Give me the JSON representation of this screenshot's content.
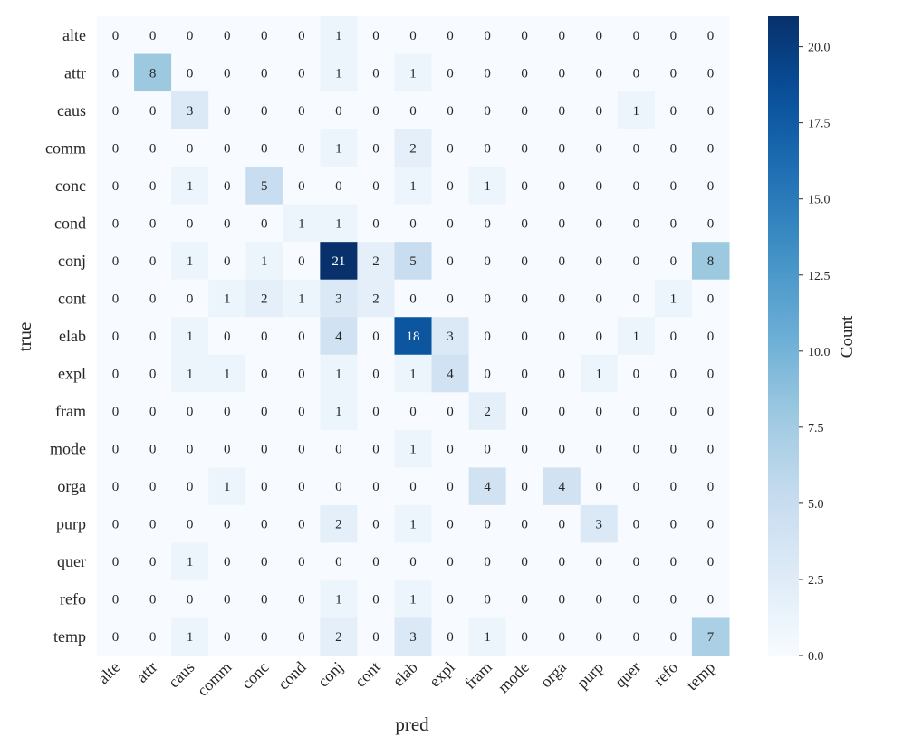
{
  "chart_data": {
    "type": "heatmap",
    "title": "",
    "xlabel": "pred",
    "ylabel": "true",
    "x_categories": [
      "alte",
      "attr",
      "caus",
      "comm",
      "conc",
      "cond",
      "conj",
      "cont",
      "elab",
      "expl",
      "fram",
      "mode",
      "orga",
      "purp",
      "quer",
      "refo",
      "temp"
    ],
    "y_categories": [
      "alte",
      "attr",
      "caus",
      "comm",
      "conc",
      "cond",
      "conj",
      "cont",
      "elab",
      "expl",
      "fram",
      "mode",
      "orga",
      "purp",
      "quer",
      "refo",
      "temp"
    ],
    "values": [
      [
        0,
        0,
        0,
        0,
        0,
        0,
        1,
        0,
        0,
        0,
        0,
        0,
        0,
        0,
        0,
        0,
        0
      ],
      [
        0,
        8,
        0,
        0,
        0,
        0,
        1,
        0,
        1,
        0,
        0,
        0,
        0,
        0,
        0,
        0,
        0
      ],
      [
        0,
        0,
        3,
        0,
        0,
        0,
        0,
        0,
        0,
        0,
        0,
        0,
        0,
        0,
        1,
        0,
        0
      ],
      [
        0,
        0,
        0,
        0,
        0,
        0,
        1,
        0,
        2,
        0,
        0,
        0,
        0,
        0,
        0,
        0,
        0
      ],
      [
        0,
        0,
        1,
        0,
        5,
        0,
        0,
        0,
        1,
        0,
        1,
        0,
        0,
        0,
        0,
        0,
        0
      ],
      [
        0,
        0,
        0,
        0,
        0,
        1,
        1,
        0,
        0,
        0,
        0,
        0,
        0,
        0,
        0,
        0,
        0
      ],
      [
        0,
        0,
        1,
        0,
        1,
        0,
        21,
        2,
        5,
        0,
        0,
        0,
        0,
        0,
        0,
        0,
        8
      ],
      [
        0,
        0,
        0,
        1,
        2,
        1,
        3,
        2,
        0,
        0,
        0,
        0,
        0,
        0,
        0,
        1,
        0
      ],
      [
        0,
        0,
        1,
        0,
        0,
        0,
        4,
        0,
        18,
        3,
        0,
        0,
        0,
        0,
        1,
        0,
        0
      ],
      [
        0,
        0,
        1,
        1,
        0,
        0,
        1,
        0,
        1,
        4,
        0,
        0,
        0,
        1,
        0,
        0,
        0
      ],
      [
        0,
        0,
        0,
        0,
        0,
        0,
        1,
        0,
        0,
        0,
        2,
        0,
        0,
        0,
        0,
        0,
        0
      ],
      [
        0,
        0,
        0,
        0,
        0,
        0,
        0,
        0,
        1,
        0,
        0,
        0,
        0,
        0,
        0,
        0,
        0
      ],
      [
        0,
        0,
        0,
        1,
        0,
        0,
        0,
        0,
        0,
        0,
        4,
        0,
        4,
        0,
        0,
        0,
        0
      ],
      [
        0,
        0,
        0,
        0,
        0,
        0,
        2,
        0,
        1,
        0,
        0,
        0,
        0,
        3,
        0,
        0,
        0
      ],
      [
        0,
        0,
        1,
        0,
        0,
        0,
        0,
        0,
        0,
        0,
        0,
        0,
        0,
        0,
        0,
        0,
        0
      ],
      [
        0,
        0,
        0,
        0,
        0,
        0,
        1,
        0,
        1,
        0,
        0,
        0,
        0,
        0,
        0,
        0,
        0
      ],
      [
        0,
        0,
        1,
        0,
        0,
        0,
        2,
        0,
        3,
        0,
        1,
        0,
        0,
        0,
        0,
        0,
        7
      ]
    ],
    "colorbar": {
      "label": "Count",
      "range": [
        0,
        21
      ],
      "ticks": [
        0.0,
        2.5,
        5.0,
        7.5,
        10.0,
        12.5,
        15.0,
        17.5,
        20.0
      ],
      "tick_labels": [
        "0.0",
        "2.5",
        "5.0",
        "7.5",
        "10.0",
        "12.5",
        "15.0",
        "17.5",
        "20.0"
      ],
      "colormap": "Blues",
      "color_low": "#f7fbff",
      "color_high": "#08306b"
    },
    "grid": false
  }
}
